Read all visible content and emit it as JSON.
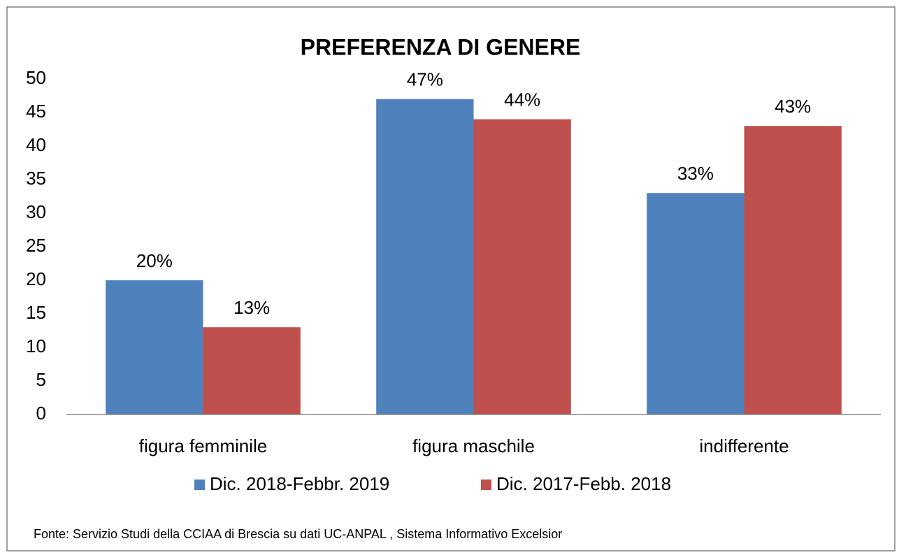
{
  "chart_data": {
    "type": "bar",
    "title": "PREFERENZA DI GENERE",
    "categories": [
      "figura femminile",
      "figura maschile",
      "indifferente"
    ],
    "series": [
      {
        "name": "Dic. 2018-Febbr. 2019",
        "color": "#4f81bd",
        "values": [
          20,
          47,
          33
        ],
        "value_labels": [
          "20%",
          "47%",
          "33%"
        ]
      },
      {
        "name": "Dic. 2017-Febb. 2018",
        "color": "#c0504d",
        "values": [
          13,
          44,
          43
        ],
        "value_labels": [
          "13%",
          "44%",
          "43%"
        ]
      }
    ],
    "ylim": [
      0,
      50
    ],
    "yticks": [
      0,
      5,
      10,
      15,
      20,
      25,
      30,
      35,
      40,
      45,
      50
    ],
    "grid": false,
    "legend": "bottom",
    "source": "Fonte: Servizio Studi della CCIAA di Brescia su dati UC-ANPAL , Sistema Informativo Excelsior"
  }
}
